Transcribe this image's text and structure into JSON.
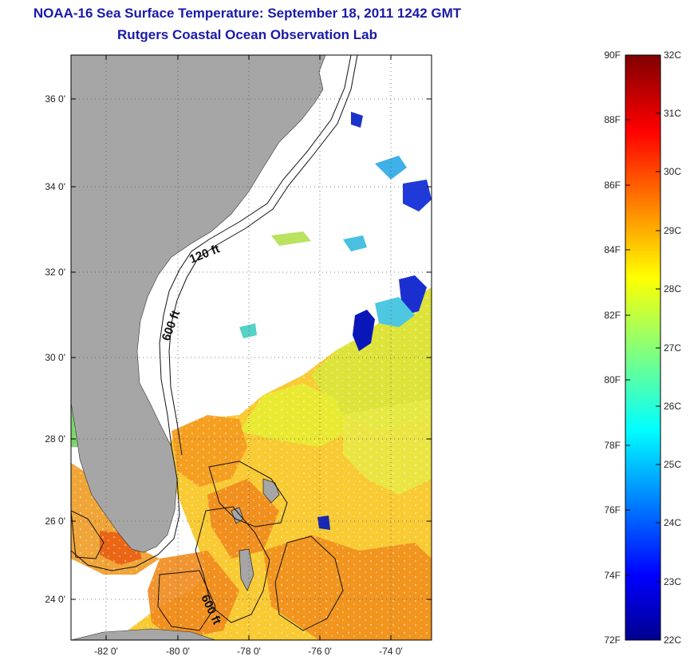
{
  "title": {
    "line1": "NOAA-16 Sea Surface Temperature:  September 18, 2011 1242 GMT",
    "line2": "Rutgers Coastal Ocean Observation Lab"
  },
  "map": {
    "lat_ticks": [
      "36 0'",
      "34 0'",
      "32 0'",
      "30 0'",
      "28 0'",
      "26 0'",
      "24 0'"
    ],
    "lon_ticks": [
      "-82 0'",
      "-80 0'",
      "-78 0'",
      "-76 0'",
      "-74 0'"
    ],
    "contour_labels": [
      "120 ft",
      "600 ft",
      "600 ft"
    ],
    "colors": {
      "land": "#a6a6a6",
      "frame": "#000000",
      "grid": "#555555"
    }
  },
  "colorbar": {
    "f_labels": [
      "90F",
      "88F",
      "86F",
      "84F",
      "82F",
      "80F",
      "78F",
      "76F",
      "74F",
      "72F"
    ],
    "c_labels": [
      "32C",
      "31C",
      "30C",
      "29C",
      "28C",
      "27C",
      "26C",
      "25C",
      "24C",
      "23C",
      "22C"
    ],
    "colormap": "jet",
    "range_c": [
      22,
      32
    ],
    "range_f": [
      72,
      90
    ]
  }
}
